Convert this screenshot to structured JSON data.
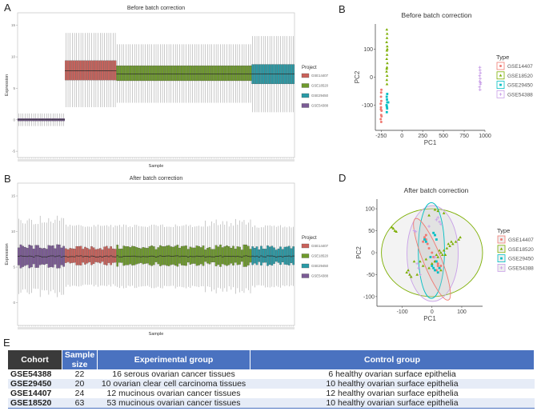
{
  "panels": {
    "a": "A",
    "b": "B",
    "c": "B",
    "d": "D",
    "e": "E"
  },
  "colors": {
    "GSE14407": "#c9625b",
    "GSE18520": "#6e9a2c",
    "GSE29450": "#2a9aa6",
    "GSE54388": "#7b5b95"
  },
  "scatter_colors": {
    "GSE14407": "#f07a72",
    "GSE18520": "#7cae00",
    "GSE29450": "#00bfc4",
    "GSE54388": "#c9a0e8"
  },
  "chart_data": [
    {
      "id": "A",
      "type": "boxplot",
      "title": "Before batch correction",
      "xlabel": "Sample",
      "ylabel": "Expression",
      "ylim": [
        -6,
        17
      ],
      "yticks": [
        -5,
        0,
        5,
        10,
        15
      ],
      "legend": {
        "title": "Project",
        "position": "right",
        "entries": [
          "GSE14407",
          "GSE18520",
          "GSE29450",
          "GSE54388"
        ]
      },
      "groups": [
        {
          "name": "GSE54388",
          "n": 22,
          "whisker_low": -1,
          "q1": -0.2,
          "median": 0,
          "q3": 0.2,
          "whisker_high": 1
        },
        {
          "name": "GSE14407",
          "n": 24,
          "whisker_low": 2,
          "q1": 6.3,
          "median": 7.8,
          "q3": 9.4,
          "whisker_high": 13.8
        },
        {
          "name": "GSE18520",
          "n": 63,
          "whisker_low": 2.7,
          "q1": 6.2,
          "median": 7.3,
          "q3": 8.6,
          "whisker_high": 12
        },
        {
          "name": "GSE29450",
          "n": 20,
          "whisker_low": 1.2,
          "q1": 5.7,
          "median": 7.3,
          "q3": 8.8,
          "whisker_high": 13.3
        }
      ]
    },
    {
      "id": "B",
      "type": "scatter",
      "title": "Before batch correction",
      "xlabel": "PC1",
      "ylabel": "PC2",
      "xlim": [
        -320,
        1000
      ],
      "ylim": [
        -190,
        190
      ],
      "xticks": [
        -250,
        0,
        250,
        500,
        750,
        1000
      ],
      "yticks": [
        -100,
        0,
        100
      ],
      "legend": {
        "title": "Type",
        "position": "right",
        "entries": [
          "GSE14407",
          "GSE18520",
          "GSE29450",
          "GSE54388"
        ]
      },
      "series": [
        {
          "name": "GSE14407",
          "marker": "circle",
          "points": [
            [
              -255,
              -150
            ],
            [
              -250,
              -135
            ],
            [
              -245,
              -120
            ],
            [
              -252,
              -108
            ],
            [
              -255,
              -95
            ],
            [
              -248,
              -85
            ],
            [
              -252,
              -70
            ],
            [
              -250,
              -55
            ],
            [
              -245,
              -140
            ],
            [
              -253,
              -115
            ],
            [
              -249,
              -160
            ],
            [
              -247,
              -45
            ]
          ]
        },
        {
          "name": "GSE18520",
          "marker": "triangle",
          "points": [
            [
              -180,
              -25
            ],
            [
              -182,
              -10
            ],
            [
              -178,
              5
            ],
            [
              -185,
              20
            ],
            [
              -180,
              35
            ],
            [
              -176,
              50
            ],
            [
              -183,
              65
            ],
            [
              -179,
              80
            ],
            [
              -181,
              95
            ],
            [
              -177,
              110
            ],
            [
              -184,
              125
            ],
            [
              -180,
              140
            ],
            [
              -178,
              155
            ],
            [
              -182,
              170
            ],
            [
              -176,
              100
            ],
            [
              -183,
              30
            ]
          ]
        },
        {
          "name": "GSE29450",
          "marker": "square",
          "points": [
            [
              -182,
              -125
            ],
            [
              -178,
              -112
            ],
            [
              -185,
              -100
            ],
            [
              -176,
              -90
            ],
            [
              -180,
              -80
            ],
            [
              -183,
              -70
            ],
            [
              -177,
              -60
            ],
            [
              -165,
              -90
            ],
            [
              -181,
              -105
            ]
          ]
        },
        {
          "name": "GSE54388",
          "marker": "cross",
          "points": [
            [
              940,
              -45
            ],
            [
              935,
              -35
            ],
            [
              945,
              -25
            ],
            [
              938,
              -15
            ],
            [
              942,
              -5
            ],
            [
              936,
              5
            ],
            [
              944,
              15
            ],
            [
              940,
              25
            ],
            [
              938,
              35
            ],
            [
              946,
              -20
            ]
          ]
        }
      ]
    },
    {
      "id": "C",
      "type": "boxplot",
      "title": "After batch correction",
      "xlabel": "Sample",
      "ylabel": "Expression",
      "ylim": [
        -3.2,
        16.8
      ],
      "yticks": [
        0,
        5,
        10,
        15
      ],
      "legend": {
        "title": "Project",
        "position": "right",
        "entries": [
          "GSE14407",
          "GSE18520",
          "GSE29450",
          "GSE54388"
        ]
      },
      "groups": [
        {
          "name": "GSE54388",
          "n": 22,
          "whisker_low": 2,
          "q1": 5.2,
          "median": 6.5,
          "q3": 7.8,
          "whisker_high": 11
        },
        {
          "name": "GSE14407",
          "n": 24,
          "whisker_low": 2.6,
          "q1": 5.5,
          "median": 6.5,
          "q3": 7.7,
          "whisker_high": 10.6
        },
        {
          "name": "GSE18520",
          "n": 63,
          "whisker_low": 2.4,
          "q1": 5.4,
          "median": 6.5,
          "q3": 7.8,
          "whisker_high": 10.6
        },
        {
          "name": "GSE29450",
          "n": 20,
          "whisker_low": 2.5,
          "q1": 5.5,
          "median": 6.5,
          "q3": 7.7,
          "whisker_high": 10.5
        }
      ]
    },
    {
      "id": "D",
      "type": "scatter",
      "title": "After batch correction",
      "xlabel": "PC1",
      "ylabel": "PC2",
      "xlim": [
        -185,
        170
      ],
      "ylim": [
        -122,
        122
      ],
      "xticks": [
        -100,
        0,
        100
      ],
      "yticks": [
        -100,
        -50,
        0,
        50,
        100
      ],
      "legend": {
        "title": "Type",
        "position": "right",
        "entries": [
          "GSE14407",
          "GSE18520",
          "GSE29450",
          "GSE54388"
        ]
      },
      "ellipses": [
        {
          "name": "GSE18520",
          "center": [
            0,
            0
          ],
          "rx": 170,
          "ry": 100,
          "angle": 0
        },
        {
          "name": "GSE54388",
          "center": [
            2,
            -2
          ],
          "rx": 86,
          "ry": 109,
          "angle": 0
        },
        {
          "name": "GSE29450",
          "center": [
            -2,
            5
          ],
          "rx": 44,
          "ry": 109,
          "angle": 0
        },
        {
          "name": "GSE14407",
          "center": [
            0,
            -15
          ],
          "rx": 30,
          "ry": 100,
          "angle": -22
        }
      ],
      "series": [
        {
          "name": "GSE14407",
          "marker": "circle",
          "points": [
            [
              -25,
              35
            ],
            [
              -20,
              30
            ],
            [
              -30,
              25
            ],
            [
              -15,
              20
            ],
            [
              -10,
              10
            ],
            [
              0,
              0
            ],
            [
              10,
              -20
            ],
            [
              20,
              -30
            ],
            [
              25,
              -35
            ],
            [
              15,
              -40
            ],
            [
              30,
              -30
            ],
            [
              -20,
              40
            ],
            [
              5,
              -10
            ],
            [
              20,
              -25
            ]
          ]
        },
        {
          "name": "GSE18520",
          "marker": "triangle",
          "points": [
            [
              -130,
              55
            ],
            [
              -125,
              50
            ],
            [
              -120,
              48
            ],
            [
              -135,
              58
            ],
            [
              -80,
              -40
            ],
            [
              -75,
              -50
            ],
            [
              -70,
              -55
            ],
            [
              -85,
              -45
            ],
            [
              -50,
              -50
            ],
            [
              -40,
              -20
            ],
            [
              -30,
              -30
            ],
            [
              -20,
              -15
            ],
            [
              10,
              -20
            ],
            [
              20,
              -10
            ],
            [
              30,
              0
            ],
            [
              40,
              5
            ],
            [
              50,
              10
            ],
            [
              60,
              15
            ],
            [
              70,
              20
            ],
            [
              80,
              25
            ],
            [
              90,
              30
            ],
            [
              95,
              35
            ],
            [
              45,
              -5
            ],
            [
              35,
              -5
            ],
            [
              55,
              20
            ],
            [
              65,
              25
            ],
            [
              20,
              95
            ],
            [
              10,
              98
            ],
            [
              -10,
              85
            ],
            [
              40,
              90
            ],
            [
              0,
              -25
            ],
            [
              -10,
              -35
            ],
            [
              30,
              -40
            ],
            [
              -60,
              -20
            ],
            [
              25,
              5
            ],
            [
              15,
              -5
            ]
          ]
        },
        {
          "name": "GSE29450",
          "marker": "square",
          "points": [
            [
              5,
              45
            ],
            [
              10,
              40
            ],
            [
              15,
              30
            ],
            [
              -25,
              30
            ],
            [
              -20,
              25
            ],
            [
              0,
              -30
            ],
            [
              5,
              -35
            ],
            [
              10,
              -40
            ],
            [
              -5,
              -10
            ],
            [
              15,
              -20
            ],
            [
              25,
              -35
            ],
            [
              20,
              -45
            ]
          ]
        },
        {
          "name": "GSE54388",
          "marker": "cross",
          "points": [
            [
              -60,
              50
            ],
            [
              -55,
              48
            ],
            [
              -50,
              -25
            ],
            [
              -45,
              -35
            ],
            [
              -40,
              -50
            ],
            [
              20,
              80
            ],
            [
              25,
              70
            ],
            [
              30,
              65
            ],
            [
              15,
              75
            ],
            [
              10,
              -10
            ],
            [
              -10,
              60
            ]
          ]
        }
      ]
    }
  ],
  "table": {
    "headers": [
      "Cohort",
      "Sample size",
      "Experimental group",
      "Control group"
    ],
    "rows": [
      [
        "GSE54388",
        "22",
        "16 serous ovarian cancer tissues",
        "6 healthy ovarian surface epithelia"
      ],
      [
        "GSE29450",
        "20",
        "10 ovarian clear cell carcinoma tissues",
        "10 healthy ovarian surface epithelia"
      ],
      [
        "GSE14407",
        "24",
        "12 mucinous ovarian cancer tissues",
        "12 healthy ovarian surface epithelia"
      ],
      [
        "GSE18520",
        "63",
        "53 mucinous ovarian cancer tissues",
        "10 healthy ovarian surface epithelia"
      ]
    ]
  }
}
